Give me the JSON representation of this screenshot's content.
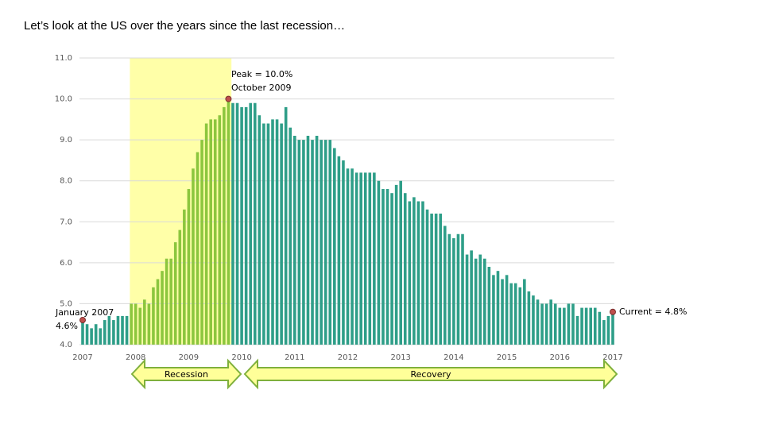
{
  "chart_data": {
    "type": "bar",
    "title": "Let’s look at the US over the years since the last recession…",
    "categories": [
      "2007",
      null,
      null,
      null,
      null,
      null,
      null,
      null,
      null,
      null,
      null,
      null,
      "2008",
      null,
      null,
      null,
      null,
      null,
      null,
      null,
      null,
      null,
      null,
      null,
      "2009",
      null,
      null,
      null,
      null,
      null,
      null,
      null,
      null,
      null,
      null,
      null,
      "2010",
      null,
      null,
      null,
      null,
      null,
      null,
      null,
      null,
      null,
      null,
      null,
      "2011",
      null,
      null,
      null,
      null,
      null,
      null,
      null,
      null,
      null,
      null,
      null,
      "2012",
      null,
      null,
      null,
      null,
      null,
      null,
      null,
      null,
      null,
      null,
      null,
      "2013",
      null,
      null,
      null,
      null,
      null,
      null,
      null,
      null,
      null,
      null,
      null,
      "2014",
      null,
      null,
      null,
      null,
      null,
      null,
      null,
      null,
      null,
      null,
      null,
      "2015",
      null,
      null,
      null,
      null,
      null,
      null,
      null,
      null,
      null,
      null,
      null,
      "2016",
      null,
      null,
      null,
      null,
      null,
      null,
      null,
      null,
      null,
      null,
      null,
      "2017"
    ],
    "values": [
      4.6,
      4.5,
      4.4,
      4.5,
      4.4,
      4.6,
      4.7,
      4.6,
      4.7,
      4.7,
      4.7,
      5.0,
      5.0,
      4.9,
      5.1,
      5.0,
      5.4,
      5.6,
      5.8,
      6.1,
      6.1,
      6.5,
      6.8,
      7.3,
      7.8,
      8.3,
      8.7,
      9.0,
      9.4,
      9.5,
      9.5,
      9.6,
      9.8,
      10.0,
      9.9,
      9.9,
      9.8,
      9.8,
      9.9,
      9.9,
      9.6,
      9.4,
      9.4,
      9.5,
      9.5,
      9.4,
      9.8,
      9.3,
      9.1,
      9.0,
      9.0,
      9.1,
      9.0,
      9.1,
      9.0,
      9.0,
      9.0,
      8.8,
      8.6,
      8.5,
      8.3,
      8.3,
      8.2,
      8.2,
      8.2,
      8.2,
      8.2,
      8.0,
      7.8,
      7.8,
      7.7,
      7.9,
      8.0,
      7.7,
      7.5,
      7.6,
      7.5,
      7.5,
      7.3,
      7.2,
      7.2,
      7.2,
      6.9,
      6.7,
      6.6,
      6.7,
      6.7,
      6.2,
      6.3,
      6.1,
      6.2,
      6.1,
      5.9,
      5.7,
      5.8,
      5.6,
      5.7,
      5.5,
      5.5,
      5.4,
      5.6,
      5.3,
      5.2,
      5.1,
      5.0,
      5.0,
      5.1,
      5.0,
      4.9,
      4.9,
      5.0,
      5.0,
      4.7,
      4.9,
      4.9,
      4.9,
      4.9,
      4.8,
      4.6,
      4.7,
      4.8
    ],
    "color": "#2e9e88",
    "recession_color": "#8cc63e",
    "recession_band_color": "#ffffa8",
    "ylim": [
      4,
      11
    ],
    "yticks": [
      {
        "value": 4,
        "label": "4.0"
      },
      {
        "value": 5,
        "label": "5.0"
      },
      {
        "value": 6,
        "label": "6.0"
      },
      {
        "value": 7,
        "label": "7.0"
      },
      {
        "value": 8,
        "label": "8.0"
      },
      {
        "value": 9,
        "label": "9.0"
      },
      {
        "value": 10,
        "label": "10.0"
      },
      {
        "value": 11,
        "label": "11.0"
      }
    ],
    "grid": true,
    "annotations": {
      "peak": [
        "Peak = 10.0%",
        "October 2009"
      ],
      "start": [
        "January 2007",
        "4.6%"
      ],
      "current": "Current = 4.8%",
      "recession": "Recession",
      "recovery": "Recovery"
    }
  }
}
